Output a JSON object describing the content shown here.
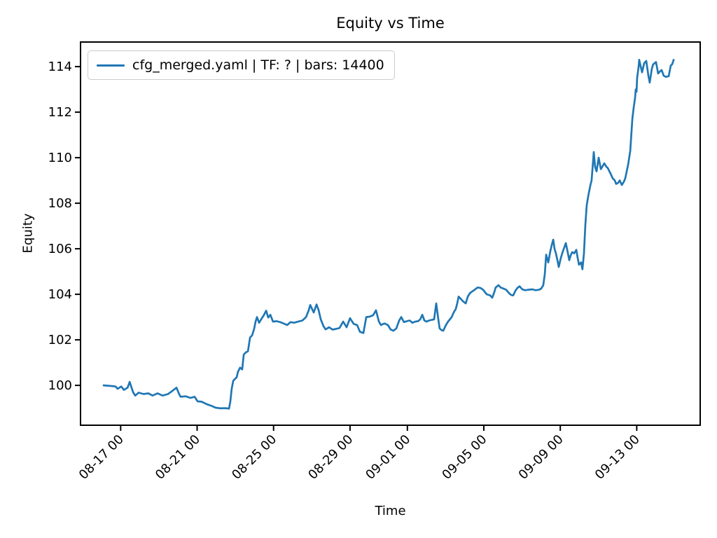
{
  "figure": {
    "title": "Equity vs Time",
    "xlabel": "Time",
    "ylabel": "Equity"
  },
  "legend": {
    "label": "cfg_merged.yaml | TF: ? | bars: 14400",
    "line_color": "#1f77b4",
    "position": "upper left"
  },
  "chart_data": {
    "type": "line",
    "title": "Equity vs Time",
    "xlabel": "Time",
    "ylabel": "Equity",
    "grid": false,
    "legend_position": "upper left",
    "x_axis_type": "datetime",
    "t_unit": "days since 08-16 00:00",
    "x_range_days": [
      -1.1,
      31.32
    ],
    "ylim": [
      98.25,
      115.08
    ],
    "y_ticks": [
      100,
      102,
      104,
      106,
      108,
      110,
      112,
      114
    ],
    "x_ticks": [
      {
        "t": 1,
        "label": "08-17 00"
      },
      {
        "t": 5,
        "label": "08-21 00"
      },
      {
        "t": 9,
        "label": "08-25 00"
      },
      {
        "t": 13,
        "label": "08-29 00"
      },
      {
        "t": 16,
        "label": "09-01 00"
      },
      {
        "t": 20,
        "label": "09-05 00"
      },
      {
        "t": 24,
        "label": "09-09 00"
      },
      {
        "t": 28,
        "label": "09-13 00"
      }
    ],
    "series": [
      {
        "name": "cfg_merged.yaml | TF: ? | bars: 14400",
        "color": "#1f77b4",
        "points": [
          [
            0.11,
            100.0
          ],
          [
            0.55,
            99.97
          ],
          [
            0.73,
            99.95
          ],
          [
            0.84,
            99.85
          ],
          [
            1.03,
            99.95
          ],
          [
            1.17,
            99.8
          ],
          [
            1.36,
            99.9
          ],
          [
            1.47,
            100.15
          ],
          [
            1.65,
            99.7
          ],
          [
            1.76,
            99.55
          ],
          [
            1.94,
            99.68
          ],
          [
            2.2,
            99.62
          ],
          [
            2.45,
            99.65
          ],
          [
            2.67,
            99.55
          ],
          [
            2.93,
            99.65
          ],
          [
            3.19,
            99.55
          ],
          [
            3.48,
            99.62
          ],
          [
            3.74,
            99.78
          ],
          [
            3.92,
            99.9
          ],
          [
            4.07,
            99.6
          ],
          [
            4.14,
            99.5
          ],
          [
            4.4,
            99.52
          ],
          [
            4.65,
            99.45
          ],
          [
            4.87,
            99.5
          ],
          [
            5.02,
            99.3
          ],
          [
            5.24,
            99.28
          ],
          [
            5.49,
            99.18
          ],
          [
            5.75,
            99.1
          ],
          [
            5.97,
            99.02
          ],
          [
            6.23,
            98.99
          ],
          [
            6.48,
            99.0
          ],
          [
            6.67,
            98.98
          ],
          [
            6.74,
            99.3
          ],
          [
            6.81,
            99.85
          ],
          [
            6.89,
            100.2
          ],
          [
            7.0,
            100.3
          ],
          [
            7.07,
            100.35
          ],
          [
            7.14,
            100.6
          ],
          [
            7.25,
            100.78
          ],
          [
            7.36,
            100.7
          ],
          [
            7.44,
            101.35
          ],
          [
            7.55,
            101.45
          ],
          [
            7.66,
            101.5
          ],
          [
            7.77,
            102.1
          ],
          [
            7.88,
            102.2
          ],
          [
            7.99,
            102.5
          ],
          [
            8.06,
            102.8
          ],
          [
            8.13,
            103.0
          ],
          [
            8.24,
            102.75
          ],
          [
            8.35,
            102.9
          ],
          [
            8.5,
            103.1
          ],
          [
            8.61,
            103.28
          ],
          [
            8.72,
            102.98
          ],
          [
            8.83,
            103.1
          ],
          [
            8.97,
            102.8
          ],
          [
            9.16,
            102.82
          ],
          [
            9.34,
            102.78
          ],
          [
            9.52,
            102.72
          ],
          [
            9.71,
            102.65
          ],
          [
            9.89,
            102.78
          ],
          [
            10.07,
            102.75
          ],
          [
            10.29,
            102.8
          ],
          [
            10.51,
            102.85
          ],
          [
            10.7,
            103.0
          ],
          [
            10.84,
            103.3
          ],
          [
            10.92,
            103.53
          ],
          [
            11.1,
            103.2
          ],
          [
            11.25,
            103.55
          ],
          [
            11.36,
            103.3
          ],
          [
            11.47,
            102.9
          ],
          [
            11.61,
            102.6
          ],
          [
            11.72,
            102.46
          ],
          [
            11.9,
            102.55
          ],
          [
            12.09,
            102.45
          ],
          [
            12.27,
            102.48
          ],
          [
            12.45,
            102.52
          ],
          [
            12.64,
            102.8
          ],
          [
            12.82,
            102.55
          ],
          [
            13.0,
            102.95
          ],
          [
            13.19,
            102.7
          ],
          [
            13.37,
            102.65
          ],
          [
            13.52,
            102.35
          ],
          [
            13.7,
            102.3
          ],
          [
            13.85,
            103.0
          ],
          [
            14.03,
            103.02
          ],
          [
            14.21,
            103.08
          ],
          [
            14.36,
            103.3
          ],
          [
            14.51,
            102.8
          ],
          [
            14.62,
            102.65
          ],
          [
            14.8,
            102.72
          ],
          [
            14.98,
            102.65
          ],
          [
            15.13,
            102.45
          ],
          [
            15.27,
            102.4
          ],
          [
            15.42,
            102.5
          ],
          [
            15.57,
            102.85
          ],
          [
            15.68,
            103.0
          ],
          [
            15.82,
            102.78
          ],
          [
            15.97,
            102.82
          ],
          [
            16.12,
            102.85
          ],
          [
            16.26,
            102.75
          ],
          [
            16.41,
            102.8
          ],
          [
            16.56,
            102.82
          ],
          [
            16.67,
            102.9
          ],
          [
            16.78,
            103.1
          ],
          [
            16.89,
            102.85
          ],
          [
            17.0,
            102.8
          ],
          [
            17.14,
            102.85
          ],
          [
            17.29,
            102.88
          ],
          [
            17.4,
            102.9
          ],
          [
            17.51,
            103.6
          ],
          [
            17.62,
            102.9
          ],
          [
            17.69,
            102.5
          ],
          [
            17.8,
            102.42
          ],
          [
            17.88,
            102.4
          ],
          [
            18.02,
            102.65
          ],
          [
            18.13,
            102.8
          ],
          [
            18.32,
            103.0
          ],
          [
            18.42,
            103.2
          ],
          [
            18.53,
            103.35
          ],
          [
            18.61,
            103.6
          ],
          [
            18.68,
            103.9
          ],
          [
            18.79,
            103.8
          ],
          [
            18.9,
            103.7
          ],
          [
            19.05,
            103.6
          ],
          [
            19.16,
            103.9
          ],
          [
            19.27,
            104.05
          ],
          [
            19.38,
            104.12
          ],
          [
            19.52,
            104.2
          ],
          [
            19.67,
            104.3
          ],
          [
            19.82,
            104.28
          ],
          [
            19.96,
            104.2
          ],
          [
            20.15,
            104.0
          ],
          [
            20.33,
            103.95
          ],
          [
            20.44,
            103.85
          ],
          [
            20.55,
            104.1
          ],
          [
            20.62,
            104.3
          ],
          [
            20.77,
            104.4
          ],
          [
            20.88,
            104.3
          ],
          [
            21.03,
            104.25
          ],
          [
            21.17,
            104.2
          ],
          [
            21.32,
            104.05
          ],
          [
            21.43,
            103.97
          ],
          [
            21.54,
            103.95
          ],
          [
            21.65,
            104.15
          ],
          [
            21.76,
            104.28
          ],
          [
            21.87,
            104.35
          ],
          [
            22.01,
            104.22
          ],
          [
            22.16,
            104.18
          ],
          [
            22.34,
            104.2
          ],
          [
            22.53,
            104.22
          ],
          [
            22.71,
            104.18
          ],
          [
            22.89,
            104.2
          ],
          [
            23.0,
            104.25
          ],
          [
            23.11,
            104.4
          ],
          [
            23.19,
            104.9
          ],
          [
            23.26,
            105.74
          ],
          [
            23.37,
            105.4
          ],
          [
            23.48,
            105.9
          ],
          [
            23.55,
            106.15
          ],
          [
            23.63,
            106.4
          ],
          [
            23.7,
            106.0
          ],
          [
            23.77,
            105.8
          ],
          [
            23.85,
            105.5
          ],
          [
            23.92,
            105.2
          ],
          [
            24.03,
            105.6
          ],
          [
            24.14,
            105.9
          ],
          [
            24.29,
            106.25
          ],
          [
            24.4,
            105.8
          ],
          [
            24.47,
            105.5
          ],
          [
            24.54,
            105.7
          ],
          [
            24.62,
            105.85
          ],
          [
            24.73,
            105.8
          ],
          [
            24.84,
            105.95
          ],
          [
            24.91,
            105.6
          ],
          [
            24.98,
            105.3
          ],
          [
            25.09,
            105.4
          ],
          [
            25.16,
            105.1
          ],
          [
            25.24,
            105.8
          ],
          [
            25.31,
            107.0
          ],
          [
            25.38,
            107.9
          ],
          [
            25.46,
            108.3
          ],
          [
            25.57,
            108.77
          ],
          [
            25.64,
            109.0
          ],
          [
            25.71,
            109.8
          ],
          [
            25.75,
            110.25
          ],
          [
            25.82,
            109.6
          ],
          [
            25.9,
            109.4
          ],
          [
            26.01,
            110.0
          ],
          [
            26.12,
            109.5
          ],
          [
            26.23,
            109.65
          ],
          [
            26.3,
            109.75
          ],
          [
            26.41,
            109.6
          ],
          [
            26.48,
            109.55
          ],
          [
            26.63,
            109.3
          ],
          [
            26.74,
            109.1
          ],
          [
            26.85,
            109.0
          ],
          [
            26.92,
            108.85
          ],
          [
            27.03,
            108.9
          ],
          [
            27.11,
            109.0
          ],
          [
            27.22,
            108.8
          ],
          [
            27.33,
            108.95
          ],
          [
            27.4,
            109.1
          ],
          [
            27.55,
            109.7
          ],
          [
            27.66,
            110.3
          ],
          [
            27.77,
            111.7
          ],
          [
            27.84,
            112.2
          ],
          [
            27.91,
            112.6
          ],
          [
            27.95,
            113.0
          ],
          [
            27.99,
            112.9
          ],
          [
            28.02,
            113.5
          ],
          [
            28.1,
            114.0
          ],
          [
            28.13,
            114.3
          ],
          [
            28.21,
            114.0
          ],
          [
            28.28,
            113.75
          ],
          [
            28.39,
            114.15
          ],
          [
            28.5,
            114.25
          ],
          [
            28.61,
            113.6
          ],
          [
            28.68,
            113.3
          ],
          [
            28.79,
            113.9
          ],
          [
            28.86,
            114.1
          ],
          [
            29.01,
            114.2
          ],
          [
            29.12,
            113.7
          ],
          [
            29.23,
            113.8
          ],
          [
            29.3,
            113.85
          ],
          [
            29.41,
            113.6
          ],
          [
            29.52,
            113.55
          ],
          [
            29.67,
            113.58
          ],
          [
            29.78,
            114.05
          ],
          [
            29.85,
            114.1
          ],
          [
            29.93,
            114.3
          ]
        ]
      }
    ]
  }
}
